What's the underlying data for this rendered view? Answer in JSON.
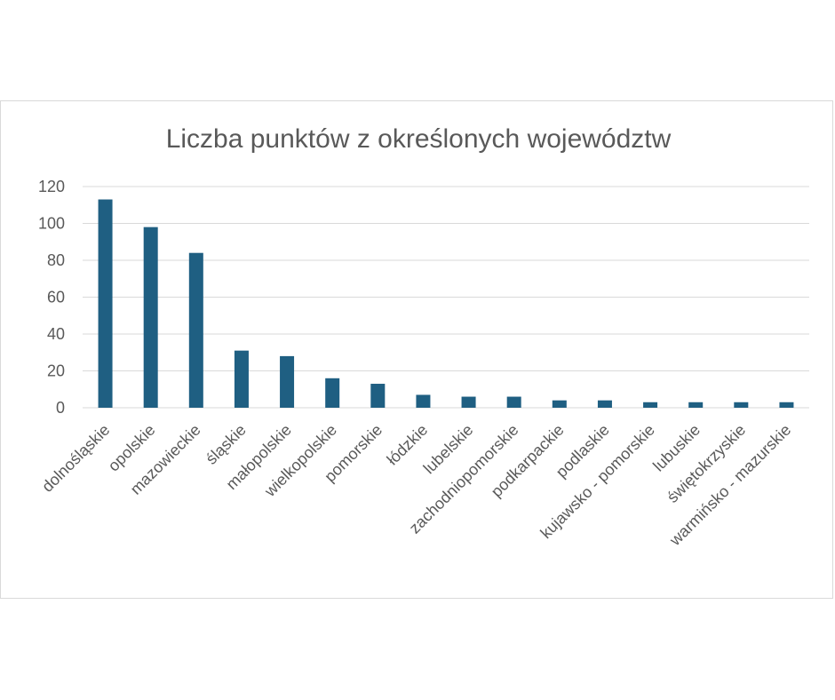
{
  "chart_data": {
    "type": "bar",
    "title": "Liczba punktów z określonych województw",
    "xlabel": "",
    "ylabel": "",
    "ylim": [
      0,
      120
    ],
    "yticks": [
      0,
      20,
      40,
      60,
      80,
      100,
      120
    ],
    "grid": true,
    "legend": "none",
    "bar_color": "#1f5f82",
    "categories": [
      "dolnośląskie",
      "opolskie",
      "mazowieckie",
      "śląskie",
      "małopolskie",
      "wielkopolskie",
      "pomorskie",
      "łódzkie",
      "lubelskie",
      "zachodniopomorskie",
      "podkarpackie",
      "podlaskie",
      "kujawsko - pomorskie",
      "lubuskie",
      "świętokrzyskie",
      "warmińsko - mazurskie"
    ],
    "values": [
      113,
      98,
      84,
      31,
      28,
      16,
      13,
      7,
      6,
      6,
      4,
      4,
      3,
      3,
      3,
      3
    ]
  }
}
